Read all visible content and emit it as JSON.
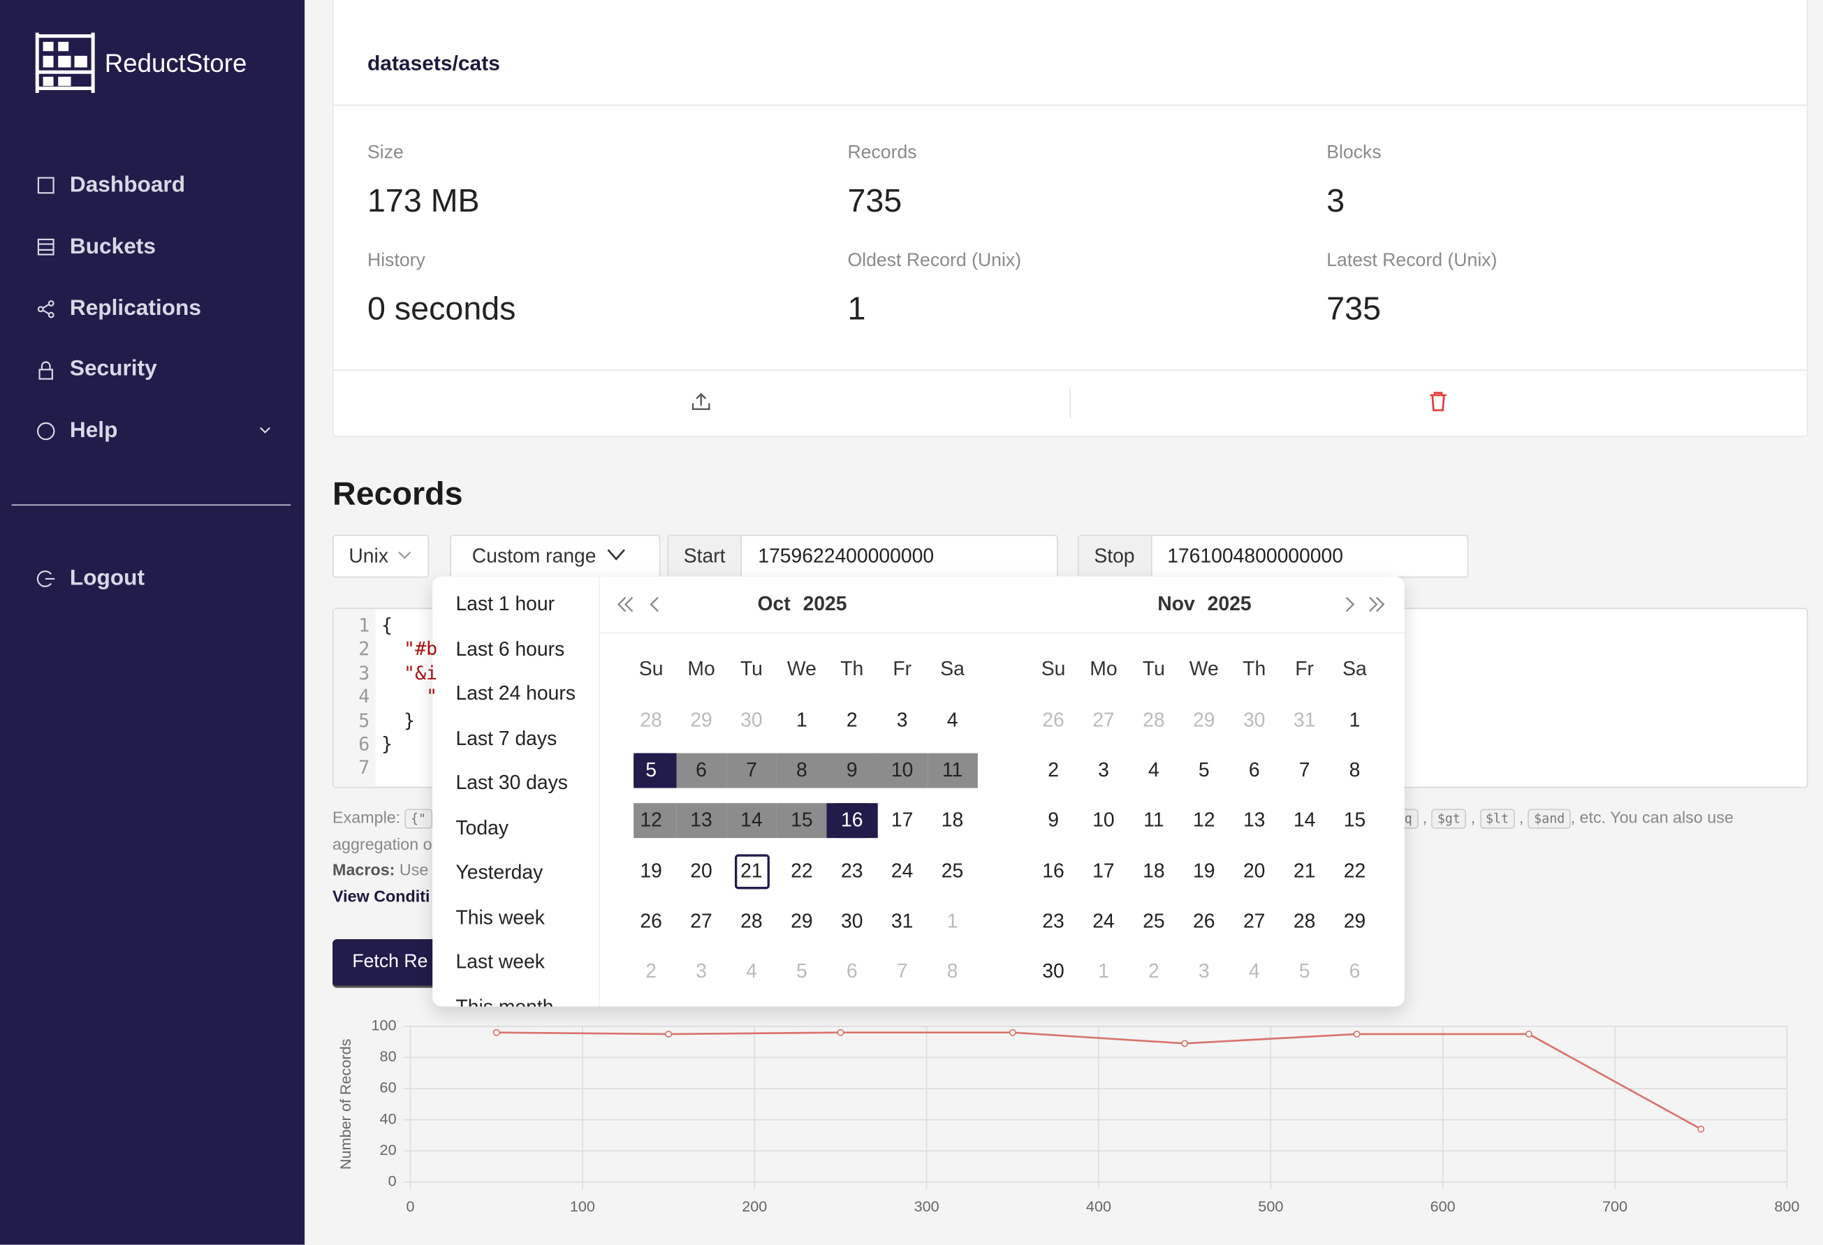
{
  "sidebar": {
    "brand": "ReductStore",
    "nav": [
      "Dashboard",
      "Buckets",
      "Replications",
      "Security",
      "Help"
    ],
    "logout": "Logout"
  },
  "bucket": {
    "title": "datasets/cats",
    "stats": [
      {
        "label": "Size",
        "value": "173 MB"
      },
      {
        "label": "Records",
        "value": "735"
      },
      {
        "label": "Blocks",
        "value": "3"
      },
      {
        "label": "History",
        "value": "0 seconds"
      },
      {
        "label": "Oldest Record (Unix)",
        "value": "1"
      },
      {
        "label": "Latest Record (Unix)",
        "value": "735"
      }
    ]
  },
  "records": {
    "heading": "Records",
    "time_format": "Unix",
    "range": "Custom range",
    "start_label": "Start",
    "start": "1759622400000000",
    "stop_label": "Stop",
    "stop": "1761004800000000"
  },
  "editor": {
    "line_numbers": [
      1,
      2,
      3,
      4,
      5,
      6,
      7
    ],
    "lines": [
      "{",
      "  \"#b",
      "  \"&i",
      "    \"",
      "  }",
      "}"
    ]
  },
  "help": {
    "example": "Example:",
    "chip1": "{\"",
    "chip2": "q",
    "ops": [
      "$gt",
      "$lt",
      "$and"
    ],
    "tail": ", etc. You can also use",
    "line2": "aggregation o",
    "macros": "Macros:",
    "macros_text": "Use",
    "conditions": "View Conditi"
  },
  "fetch": "Fetch Re",
  "date_picker": {
    "presets": [
      "Last 1 hour",
      "Last 6 hours",
      "Last 24 hours",
      "Last 7 days",
      "Last 30 days",
      "Today",
      "Yesterday",
      "This week",
      "Last week",
      "This month"
    ],
    "weekdays": [
      "Su",
      "Mo",
      "Tu",
      "We",
      "Th",
      "Fr",
      "Sa"
    ],
    "months": [
      {
        "month": "Oct",
        "year": "2025",
        "range": [
          5,
          16
        ],
        "today": 21,
        "days": [
          [
            28,
            29,
            30,
            1,
            2,
            3,
            4
          ],
          [
            5,
            6,
            7,
            8,
            9,
            10,
            11
          ],
          [
            12,
            13,
            14,
            15,
            16,
            17,
            18
          ],
          [
            19,
            20,
            21,
            22,
            23,
            24,
            25
          ],
          [
            26,
            27,
            28,
            29,
            30,
            31,
            1
          ],
          [
            2,
            3,
            4,
            5,
            6,
            7,
            8
          ]
        ]
      },
      {
        "month": "Nov",
        "year": "2025",
        "days": [
          [
            26,
            27,
            28,
            29,
            30,
            31,
            1
          ],
          [
            2,
            3,
            4,
            5,
            6,
            7,
            8
          ],
          [
            9,
            10,
            11,
            12,
            13,
            14,
            15
          ],
          [
            16,
            17,
            18,
            19,
            20,
            21,
            22
          ],
          [
            23,
            24,
            25,
            26,
            27,
            28,
            29
          ],
          [
            30,
            1,
            2,
            3,
            4,
            5,
            6
          ]
        ]
      }
    ]
  },
  "chart_data": {
    "type": "line",
    "y_label": "Number of Records",
    "x": [
      50,
      150,
      250,
      350,
      450,
      550,
      650,
      750
    ],
    "series": [
      {
        "color": "#d9736b",
        "values": [
          96,
          95,
          96,
          96,
          89,
          95,
          95,
          34
        ]
      }
    ],
    "xlim": [
      0,
      800
    ],
    "ylim": [
      0,
      100
    ],
    "xticks": [
      0,
      100,
      200,
      300,
      400,
      500,
      600,
      700,
      800
    ],
    "yticks": [
      0,
      20,
      40,
      60,
      80,
      100
    ],
    "grid": true
  }
}
